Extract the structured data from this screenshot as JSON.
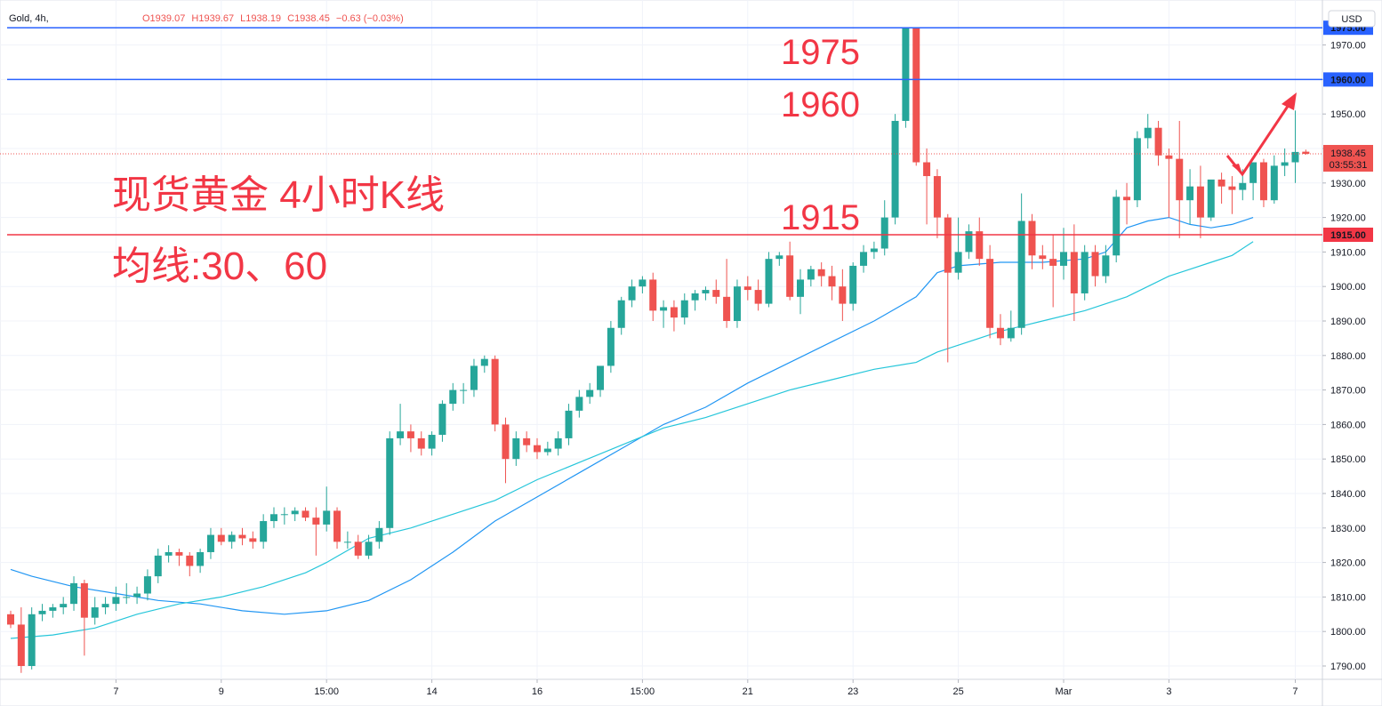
{
  "header": {
    "symbol": "Gold, 4h,",
    "open": "O1939.07",
    "high": "H1939.67",
    "low": "L1938.19",
    "close": "C1938.45",
    "change": "−0.63 (−0.03%)",
    "currency": "USD"
  },
  "price_badge": {
    "price": "1938.45",
    "countdown": "03:55:31"
  },
  "annotations": {
    "label_1975": "1975",
    "label_1960": "1960",
    "label_1915": "1915",
    "title": "现货黄金 4小时K线",
    "ma_text": "均线:30、60"
  },
  "colors": {
    "up": "#26a69a",
    "down": "#ef5350",
    "ma30": "#2196f3",
    "ma60": "#26c6da",
    "hline_blue": "#2962ff",
    "hline_red": "#f23645",
    "annotation_red": "#f23645"
  },
  "chart_data": {
    "type": "candlestick",
    "symbol": "Gold",
    "interval": "4h",
    "ylim": [
      1785,
      1995
    ],
    "y_ticks": [
      1790,
      1800,
      1810,
      1820,
      1830,
      1840,
      1850,
      1860,
      1870,
      1880,
      1890,
      1900,
      1910,
      1920,
      1930,
      1940,
      1950,
      1960,
      1970
    ],
    "x_ticks": [
      {
        "label": "7",
        "bar": 10
      },
      {
        "label": "9",
        "bar": 20
      },
      {
        "label": "15:00",
        "bar": 30
      },
      {
        "label": "14",
        "bar": 40
      },
      {
        "label": "16",
        "bar": 50
      },
      {
        "label": "15:00",
        "bar": 60
      },
      {
        "label": "21",
        "bar": 70
      },
      {
        "label": "23",
        "bar": 80
      },
      {
        "label": "25",
        "bar": 90
      },
      {
        "label": "Mar",
        "bar": 100
      },
      {
        "label": "3",
        "bar": 110
      },
      {
        "label": "7",
        "bar": 122
      }
    ],
    "horizontal_lines": [
      {
        "price": 1975.0,
        "label": "1975.00",
        "color": "blue"
      },
      {
        "price": 1960.0,
        "label": "1960.00",
        "color": "blue"
      },
      {
        "price": 1915.0,
        "label": "1915.00",
        "color": "red"
      }
    ],
    "last_price": 1938.45,
    "candles": [
      [
        1805,
        1806,
        1801,
        1802
      ],
      [
        1802,
        1807,
        1788,
        1790
      ],
      [
        1790,
        1807,
        1789,
        1805
      ],
      [
        1805,
        1808,
        1803,
        1806
      ],
      [
        1806,
        1808,
        1804,
        1807
      ],
      [
        1807,
        1810,
        1805,
        1808
      ],
      [
        1808,
        1816,
        1806,
        1814
      ],
      [
        1814,
        1815,
        1793,
        1804
      ],
      [
        1804,
        1810,
        1802,
        1807
      ],
      [
        1807,
        1810,
        1805,
        1808
      ],
      [
        1808,
        1813,
        1806,
        1810
      ],
      [
        1810,
        1814,
        1808,
        1810
      ],
      [
        1810,
        1813,
        1808,
        1811
      ],
      [
        1811,
        1818,
        1809,
        1816
      ],
      [
        1816,
        1824,
        1814,
        1822
      ],
      [
        1822,
        1825,
        1820,
        1823
      ],
      [
        1823,
        1824,
        1819,
        1822
      ],
      [
        1822,
        1823,
        1816,
        1819
      ],
      [
        1819,
        1824,
        1817,
        1823
      ],
      [
        1823,
        1830,
        1821,
        1828
      ],
      [
        1828,
        1830,
        1825,
        1826
      ],
      [
        1826,
        1829,
        1824,
        1828
      ],
      [
        1828,
        1830,
        1825,
        1827
      ],
      [
        1827,
        1829,
        1824,
        1826
      ],
      [
        1826,
        1834,
        1824,
        1832
      ],
      [
        1832,
        1836,
        1830,
        1834
      ],
      [
        1834,
        1836,
        1831,
        1834
      ],
      [
        1834,
        1836,
        1832,
        1835
      ],
      [
        1835,
        1836,
        1832,
        1833
      ],
      [
        1833,
        1836,
        1822,
        1831
      ],
      [
        1831,
        1842,
        1829,
        1835
      ],
      [
        1835,
        1836,
        1824,
        1826
      ],
      [
        1826,
        1829,
        1824,
        1826
      ],
      [
        1826,
        1828,
        1821,
        1822
      ],
      [
        1822,
        1828,
        1821,
        1826
      ],
      [
        1826,
        1832,
        1824,
        1830
      ],
      [
        1830,
        1858,
        1828,
        1856
      ],
      [
        1856,
        1866,
        1854,
        1858
      ],
      [
        1858,
        1860,
        1852,
        1856
      ],
      [
        1856,
        1858,
        1851,
        1853
      ],
      [
        1853,
        1858,
        1851,
        1857
      ],
      [
        1857,
        1867,
        1855,
        1866
      ],
      [
        1866,
        1872,
        1864,
        1870
      ],
      [
        1870,
        1872,
        1866,
        1870
      ],
      [
        1870,
        1879,
        1868,
        1877
      ],
      [
        1877,
        1880,
        1875,
        1879
      ],
      [
        1879,
        1880,
        1858,
        1860
      ],
      [
        1860,
        1862,
        1843,
        1850
      ],
      [
        1850,
        1858,
        1848,
        1856
      ],
      [
        1856,
        1858,
        1852,
        1854
      ],
      [
        1854,
        1856,
        1850,
        1852
      ],
      [
        1852,
        1855,
        1851,
        1853
      ],
      [
        1853,
        1858,
        1851,
        1856
      ],
      [
        1856,
        1866,
        1854,
        1864
      ],
      [
        1864,
        1870,
        1862,
        1868
      ],
      [
        1868,
        1872,
        1866,
        1870
      ],
      [
        1870,
        1876,
        1868,
        1877
      ],
      [
        1877,
        1890,
        1875,
        1888
      ],
      [
        1888,
        1897,
        1886,
        1896
      ],
      [
        1896,
        1902,
        1894,
        1900
      ],
      [
        1900,
        1903,
        1898,
        1902
      ],
      [
        1902,
        1904,
        1890,
        1893
      ],
      [
        1893,
        1896,
        1888,
        1894
      ],
      [
        1894,
        1896,
        1887,
        1891
      ],
      [
        1891,
        1898,
        1889,
        1896
      ],
      [
        1896,
        1899,
        1893,
        1898
      ],
      [
        1898,
        1900,
        1896,
        1899
      ],
      [
        1899,
        1902,
        1895,
        1897
      ],
      [
        1897,
        1908,
        1888,
        1890
      ],
      [
        1890,
        1902,
        1888,
        1900
      ],
      [
        1900,
        1903,
        1896,
        1899
      ],
      [
        1899,
        1902,
        1893,
        1895
      ],
      [
        1895,
        1910,
        1894,
        1908
      ],
      [
        1908,
        1910,
        1906,
        1909
      ],
      [
        1909,
        1913,
        1896,
        1897
      ],
      [
        1897,
        1905,
        1892,
        1902
      ],
      [
        1902,
        1906,
        1900,
        1905
      ],
      [
        1905,
        1907,
        1900,
        1903
      ],
      [
        1903,
        1906,
        1896,
        1900
      ],
      [
        1900,
        1905,
        1890,
        1895
      ],
      [
        1895,
        1907,
        1893,
        1906
      ],
      [
        1906,
        1912,
        1904,
        1910
      ],
      [
        1910,
        1913,
        1908,
        1911
      ],
      [
        1911,
        1925,
        1909,
        1920
      ],
      [
        1920,
        1950,
        1918,
        1948
      ],
      [
        1948,
        1975,
        1946,
        1975
      ],
      [
        1975,
        1975,
        1935,
        1936
      ],
      [
        1936,
        1940,
        1918,
        1932
      ],
      [
        1932,
        1934,
        1914,
        1920
      ],
      [
        1920,
        1921,
        1878,
        1904
      ],
      [
        1904,
        1920,
        1902,
        1910
      ],
      [
        1910,
        1918,
        1908,
        1916
      ],
      [
        1916,
        1920,
        1906,
        1908
      ],
      [
        1908,
        1912,
        1885,
        1888
      ],
      [
        1888,
        1892,
        1883,
        1885
      ],
      [
        1885,
        1893,
        1884,
        1888
      ],
      [
        1888,
        1927,
        1886,
        1919
      ],
      [
        1919,
        1921,
        1905,
        1909
      ],
      [
        1909,
        1912,
        1905,
        1908
      ],
      [
        1908,
        1915,
        1894,
        1906
      ],
      [
        1906,
        1917,
        1902,
        1910
      ],
      [
        1910,
        1918,
        1890,
        1898
      ],
      [
        1898,
        1912,
        1896,
        1910
      ],
      [
        1910,
        1912,
        1900,
        1903
      ],
      [
        1903,
        1912,
        1901,
        1909
      ],
      [
        1909,
        1928,
        1907,
        1926
      ],
      [
        1926,
        1930,
        1918,
        1925
      ],
      [
        1925,
        1945,
        1923,
        1943
      ],
      [
        1943,
        1950,
        1940,
        1946
      ],
      [
        1946,
        1948,
        1935,
        1938
      ],
      [
        1938,
        1940,
        1920,
        1937
      ],
      [
        1937,
        1948,
        1914,
        1925
      ],
      [
        1925,
        1934,
        1918,
        1929
      ],
      [
        1929,
        1935,
        1914,
        1920
      ],
      [
        1920,
        1930,
        1919,
        1931
      ],
      [
        1931,
        1933,
        1924,
        1929
      ],
      [
        1929,
        1932,
        1921,
        1928
      ],
      [
        1928,
        1934,
        1925,
        1930
      ],
      [
        1930,
        1936,
        1925,
        1936
      ],
      [
        1936,
        1937,
        1923,
        1925
      ],
      [
        1925,
        1938,
        1924,
        1935
      ],
      [
        1935,
        1940,
        1932,
        1936
      ],
      [
        1936,
        1951,
        1930,
        1939
      ],
      [
        1939.07,
        1939.67,
        1938.19,
        1938.45
      ]
    ],
    "ma_series": [
      {
        "name": "MA 30",
        "period": 30,
        "points": [
          [
            0,
            1818
          ],
          [
            2,
            1816
          ],
          [
            6,
            1813
          ],
          [
            10,
            1811
          ],
          [
            14,
            1809
          ],
          [
            18,
            1808
          ],
          [
            22,
            1806
          ],
          [
            26,
            1805
          ],
          [
            30,
            1806
          ],
          [
            34,
            1809
          ],
          [
            38,
            1815
          ],
          [
            42,
            1823
          ],
          [
            46,
            1832
          ],
          [
            50,
            1839
          ],
          [
            54,
            1846
          ],
          [
            58,
            1853
          ],
          [
            62,
            1860
          ],
          [
            66,
            1865
          ],
          [
            70,
            1872
          ],
          [
            74,
            1878
          ],
          [
            78,
            1884
          ],
          [
            82,
            1890
          ],
          [
            86,
            1897
          ],
          [
            88,
            1904
          ],
          [
            90,
            1906
          ],
          [
            94,
            1907
          ],
          [
            98,
            1907
          ],
          [
            102,
            1908
          ],
          [
            104,
            1910
          ],
          [
            106,
            1917
          ],
          [
            108,
            1919
          ],
          [
            110,
            1920
          ],
          [
            112,
            1918
          ],
          [
            114,
            1917
          ],
          [
            116,
            1918
          ],
          [
            118,
            1920
          ]
        ]
      },
      {
        "name": "MA 60",
        "period": 60,
        "points": [
          [
            0,
            1798
          ],
          [
            4,
            1799
          ],
          [
            8,
            1801
          ],
          [
            12,
            1805
          ],
          [
            16,
            1808
          ],
          [
            20,
            1810
          ],
          [
            24,
            1813
          ],
          [
            28,
            1817
          ],
          [
            30,
            1820
          ],
          [
            34,
            1827
          ],
          [
            38,
            1830
          ],
          [
            42,
            1834
          ],
          [
            46,
            1838
          ],
          [
            50,
            1844
          ],
          [
            54,
            1849
          ],
          [
            58,
            1854
          ],
          [
            62,
            1859
          ],
          [
            66,
            1862
          ],
          [
            70,
            1866
          ],
          [
            74,
            1870
          ],
          [
            78,
            1873
          ],
          [
            82,
            1876
          ],
          [
            86,
            1878
          ],
          [
            88,
            1881
          ],
          [
            90,
            1883
          ],
          [
            94,
            1887
          ],
          [
            98,
            1890
          ],
          [
            102,
            1893
          ],
          [
            106,
            1897
          ],
          [
            108,
            1900
          ],
          [
            110,
            1903
          ],
          [
            112,
            1905
          ],
          [
            114,
            1907
          ],
          [
            116,
            1909
          ],
          [
            118,
            1913
          ]
        ]
      }
    ]
  }
}
